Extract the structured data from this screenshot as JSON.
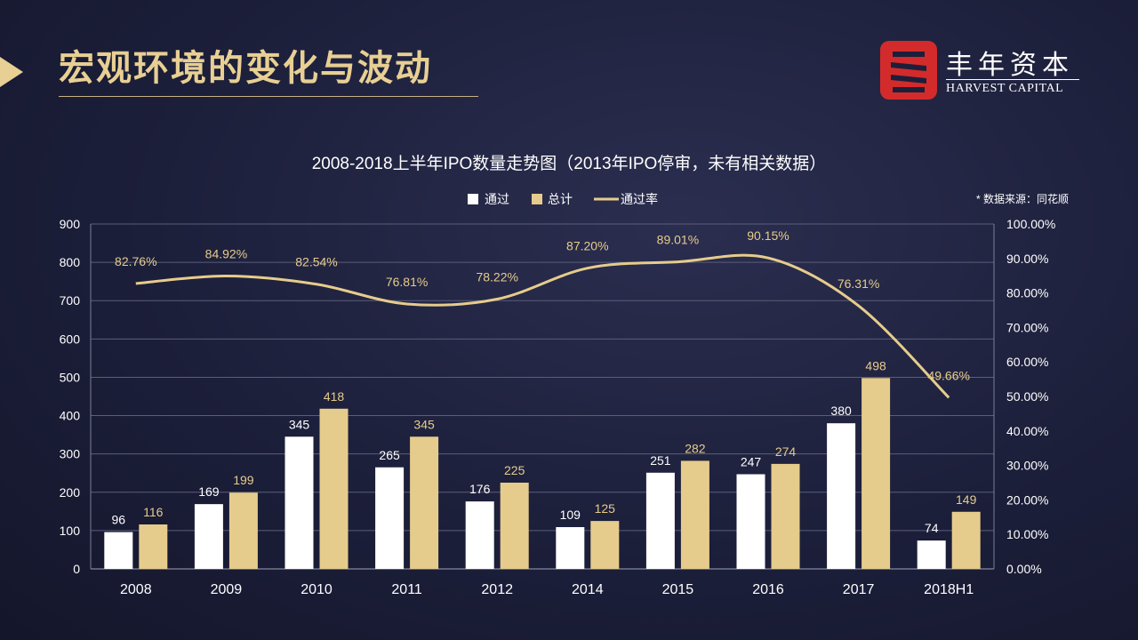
{
  "slide": {
    "title": "宏观环境的变化与波动"
  },
  "brand": {
    "name_cn": "丰年资本",
    "name_en": "HARVEST CAPITAL",
    "logo_icon": "harvest-capital-logo",
    "colors": {
      "logo_red": "#d32b2b",
      "gold": "#e8cf93",
      "white": "#ffffff"
    }
  },
  "chart_data": {
    "type": "bar",
    "title": "2008-2018上半年IPO数量走势图（2013年IPO停审，未有相关数据）",
    "source_note": "* 数据来源：同花顺",
    "categories": [
      "2008",
      "2009",
      "2010",
      "2011",
      "2012",
      "2014",
      "2015",
      "2016",
      "2017",
      "2018H1"
    ],
    "series": [
      {
        "name": "通过",
        "type": "bar",
        "axis": "left",
        "color": "#ffffff",
        "values": [
          96,
          169,
          345,
          265,
          176,
          109,
          251,
          247,
          380,
          74
        ]
      },
      {
        "name": "总计",
        "type": "bar",
        "axis": "left",
        "color": "#e6cc8c",
        "values": [
          116,
          199,
          418,
          345,
          225,
          125,
          282,
          274,
          498,
          149
        ]
      },
      {
        "name": "通过率",
        "type": "line",
        "axis": "right",
        "color": "#e6cc8c",
        "values": [
          82.76,
          84.92,
          82.54,
          76.81,
          78.22,
          87.2,
          89.01,
          90.15,
          76.31,
          49.66
        ],
        "labels": [
          "82.76%",
          "84.92%",
          "82.54%",
          "76.81%",
          "78.22%",
          "87.20%",
          "89.01%",
          "90.15%",
          "76.31%",
          "49.66%"
        ]
      }
    ],
    "y_left": {
      "min": 0,
      "max": 900,
      "step": 100,
      "ticks": [
        "0",
        "100",
        "200",
        "300",
        "400",
        "500",
        "600",
        "700",
        "800",
        "900"
      ]
    },
    "y_right": {
      "min": 0,
      "max": 100,
      "step": 10,
      "ticks": [
        "0.00%",
        "10.00%",
        "20.00%",
        "30.00%",
        "40.00%",
        "50.00%",
        "60.00%",
        "70.00%",
        "80.00%",
        "90.00%",
        "100.00%"
      ]
    },
    "grid": true,
    "legend_position": "top-center"
  }
}
